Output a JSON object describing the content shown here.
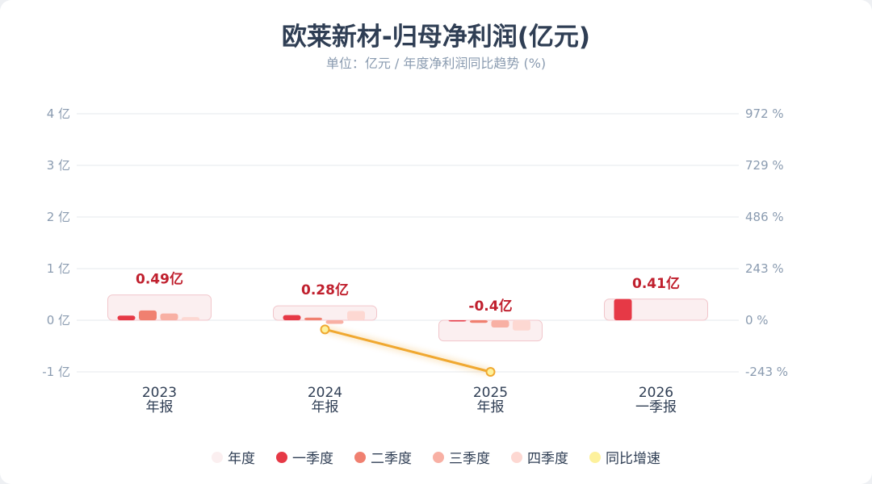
{
  "title": "欧莱新材-归母净利润(亿元)",
  "subtitle": "单位：亿元 / 年度净利润同比趋势 (%)",
  "colors": {
    "annual": "#fbeff0",
    "annual_stroke": "#f1c6cb",
    "q1": "#e63946",
    "q2": "#f08070",
    "q3": "#f8b0a4",
    "q4": "#fdd8d2",
    "yoy": "#f0a830",
    "yoy_legend": "#fdf19c",
    "label": "#c0202e",
    "axis_text": "#8a9bb0",
    "grid": "#e6e9ee"
  },
  "legend": [
    {
      "label": "年度",
      "color": "#fbeff0"
    },
    {
      "label": "一季度",
      "color": "#e63946"
    },
    {
      "label": "二季度",
      "color": "#f08070"
    },
    {
      "label": "三季度",
      "color": "#f8b0a4"
    },
    {
      "label": "四季度",
      "color": "#fdd8d2"
    },
    {
      "label": "同比增速",
      "color": "#fdf19c"
    }
  ],
  "chart_data": {
    "type": "bar",
    "categories": [
      "2023",
      "2024",
      "2025",
      "2026"
    ],
    "category_sublabels": [
      "年报",
      "年报",
      "年报",
      "一季报"
    ],
    "annual_values": [
      0.49,
      0.28,
      -0.4,
      0.41
    ],
    "annual_labels": [
      "0.49亿",
      "0.28亿",
      "-0.4亿",
      "0.41亿"
    ],
    "series": [
      {
        "name": "一季度",
        "values": [
          0.09,
          0.1,
          -0.02,
          0.41
        ]
      },
      {
        "name": "二季度",
        "values": [
          0.19,
          0.05,
          -0.05,
          null
        ]
      },
      {
        "name": "三季度",
        "values": [
          0.13,
          -0.07,
          -0.14,
          null
        ]
      },
      {
        "name": "四季度",
        "values": [
          0.06,
          0.18,
          -0.2,
          null
        ]
      }
    ],
    "yoy": {
      "name": "同比增速",
      "values": [
        null,
        -43,
        -243,
        null
      ]
    },
    "y_left": {
      "ticks": [
        "4 亿",
        "3 亿",
        "2 亿",
        "1 亿",
        "0 亿",
        "-1 亿"
      ],
      "min": -1,
      "max": 4
    },
    "y_right": {
      "ticks": [
        "972 %",
        "729 %",
        "486 %",
        "243 %",
        "0 %",
        "-243 %"
      ],
      "min": -243,
      "max": 972
    },
    "grid": true,
    "legend_position": "bottom"
  }
}
